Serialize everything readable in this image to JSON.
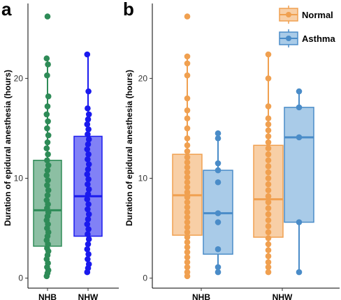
{
  "chart_data": [
    {
      "panel": "a",
      "type": "box",
      "ylabel": "Duration of epidural anesthesia (hours)",
      "xlabel": "",
      "ylim": [
        -1,
        27.5
      ],
      "yticks": [
        0,
        10,
        20
      ],
      "categories": [
        "NHB",
        "NHW"
      ],
      "grid": false,
      "series": [
        {
          "category": "NHB",
          "color": "#2e8b57",
          "box": {
            "min": 0.2,
            "q1": 3.2,
            "median": 6.8,
            "q3": 11.8,
            "max": 22.2
          },
          "points": [
            0.2,
            0.5,
            0.8,
            1.1,
            1.5,
            1.9,
            2.3,
            2.7,
            3.0,
            3.4,
            3.8,
            4.2,
            4.6,
            5.0,
            5.4,
            5.8,
            6.2,
            6.6,
            7.0,
            7.4,
            7.8,
            8.3,
            8.8,
            9.3,
            9.8,
            10.3,
            10.8,
            11.3,
            11.8,
            12.4,
            13.0,
            13.6,
            14.3,
            15.0,
            15.7,
            16.4,
            17.2,
            18.2,
            20.3,
            21.4,
            22.0,
            26.2
          ]
        },
        {
          "category": "NHW",
          "color": "#1a1aee",
          "box": {
            "min": 0.6,
            "q1": 4.2,
            "median": 8.2,
            "q3": 14.2,
            "max": 22.4
          },
          "points": [
            0.6,
            1.0,
            1.4,
            1.9,
            2.4,
            2.9,
            3.4,
            3.9,
            4.4,
            4.9,
            5.4,
            5.9,
            6.4,
            6.9,
            7.4,
            7.9,
            8.4,
            8.9,
            9.4,
            9.9,
            10.4,
            10.9,
            11.4,
            11.9,
            12.4,
            12.9,
            13.4,
            13.9,
            14.4,
            14.9,
            15.4,
            15.9,
            16.4,
            17.0,
            18.7,
            22.4
          ]
        }
      ]
    },
    {
      "panel": "b",
      "type": "box",
      "ylabel": "Duration of epidural anesthesia (hours)",
      "xlabel": "",
      "ylim": [
        -1,
        27.5
      ],
      "yticks": [
        0,
        10,
        20
      ],
      "categories": [
        "NHB",
        "NHW"
      ],
      "grid": false,
      "legend_position": "top-right",
      "legend": [
        {
          "name": "Normal",
          "color": "#f0a050",
          "fill": "#f8cfa6"
        },
        {
          "name": "Asthma",
          "color": "#4a8cc8",
          "fill": "#a9cbe8"
        }
      ],
      "series": [
        {
          "name": "Normal",
          "category": "NHB",
          "color": "#f0a050",
          "fill": "#f8cfa6",
          "box": {
            "min": 0.2,
            "q1": 4.3,
            "median": 8.3,
            "q3": 12.4,
            "max": 22.2
          },
          "points": [
            0.2,
            0.6,
            1.1,
            1.6,
            2.1,
            2.6,
            3.1,
            3.6,
            4.1,
            4.6,
            5.1,
            5.6,
            6.1,
            6.6,
            7.1,
            7.6,
            8.1,
            8.6,
            9.1,
            9.6,
            10.1,
            10.6,
            11.1,
            11.6,
            12.1,
            12.7,
            13.3,
            14.0,
            15.0,
            16.0,
            16.8,
            18.0,
            20.3,
            21.5,
            22.2,
            26.2
          ]
        },
        {
          "name": "Asthma",
          "category": "NHB",
          "color": "#4a8cc8",
          "fill": "#a9cbe8",
          "box": {
            "min": 0.6,
            "q1": 2.4,
            "median": 6.5,
            "q3": 10.8,
            "max": 14.5
          },
          "points": [
            0.6,
            1.1,
            2.9,
            5.6,
            6.5,
            9.6,
            10.8,
            11.5,
            14.0,
            14.5
          ]
        },
        {
          "name": "Normal",
          "category": "NHW",
          "color": "#f0a050",
          "fill": "#f8cfa6",
          "box": {
            "min": 0.6,
            "q1": 4.1,
            "median": 7.9,
            "q3": 13.3,
            "max": 22.4
          },
          "points": [
            0.6,
            1.1,
            1.6,
            2.2,
            2.8,
            3.4,
            4.0,
            4.6,
            5.2,
            5.8,
            6.4,
            7.0,
            7.6,
            8.2,
            8.8,
            9.4,
            10.0,
            10.6,
            11.2,
            11.8,
            12.4,
            13.0,
            13.6,
            14.2,
            14.8,
            15.4,
            16.0,
            17.2,
            20.0,
            22.4
          ]
        },
        {
          "name": "Asthma",
          "category": "NHW",
          "color": "#4a8cc8",
          "fill": "#a9cbe8",
          "box": {
            "min": 0.6,
            "q1": 5.6,
            "median": 14.1,
            "q3": 17.1,
            "max": 18.7
          },
          "points": [
            0.6,
            5.6,
            14.1,
            17.1,
            18.7
          ]
        }
      ]
    }
  ]
}
